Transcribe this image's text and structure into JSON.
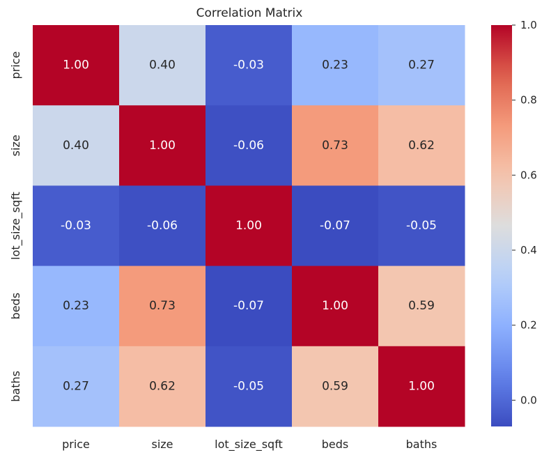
{
  "chart_data": {
    "type": "heatmap",
    "title": "Correlation Matrix",
    "xlabel": "",
    "ylabel": "",
    "x_categories": [
      "price",
      "size",
      "lot_size_sqft",
      "beds",
      "baths"
    ],
    "y_categories": [
      "price",
      "size",
      "lot_size_sqft",
      "beds",
      "baths"
    ],
    "values": [
      [
        1.0,
        0.4,
        -0.03,
        0.23,
        0.27
      ],
      [
        0.4,
        1.0,
        -0.06,
        0.73,
        0.62
      ],
      [
        -0.03,
        -0.06,
        1.0,
        -0.07,
        -0.05
      ],
      [
        0.23,
        0.73,
        -0.07,
        1.0,
        0.59
      ],
      [
        0.27,
        0.62,
        -0.05,
        0.59,
        1.0
      ]
    ],
    "annotation_format": "0.00",
    "colormap": "coolwarm",
    "color_range": [
      -0.07,
      1.0
    ],
    "colorbar": {
      "ticks": [
        0.0,
        0.2,
        0.4,
        0.6,
        0.8,
        1.0
      ],
      "tick_labels": [
        "0.0",
        "0.2",
        "0.4",
        "0.6",
        "0.8",
        "1.0"
      ],
      "placement": "right"
    },
    "grid": false
  }
}
